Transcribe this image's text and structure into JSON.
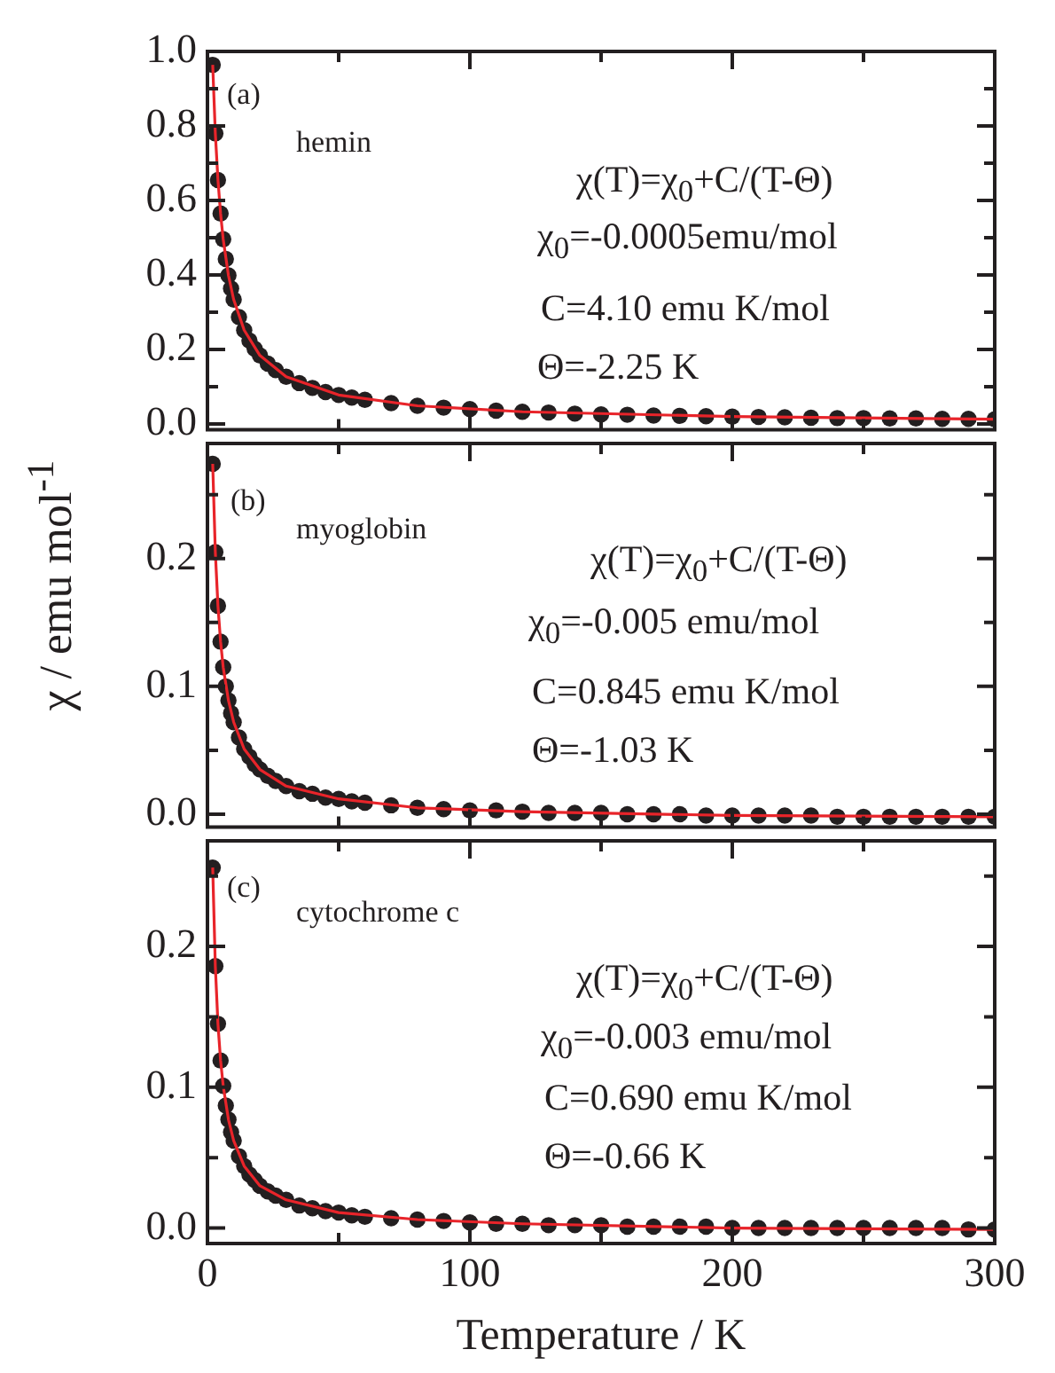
{
  "chart_data": [
    {
      "type": "scatter",
      "x": [
        2,
        3,
        4,
        5,
        6,
        7,
        8,
        9,
        10,
        12,
        14,
        16,
        18,
        20,
        23,
        26,
        30,
        35,
        40,
        45,
        50,
        55,
        60,
        70,
        80,
        90,
        100,
        110,
        120,
        130,
        140,
        150,
        160,
        170,
        180,
        190,
        200,
        210,
        220,
        230,
        240,
        250,
        260,
        270,
        280,
        290,
        300
      ],
      "series": [
        {
          "type": "scatter",
          "color": "#231f20",
          "marker": "circle",
          "values": [
            0.964,
            0.78,
            0.655,
            0.565,
            0.496,
            0.443,
            0.399,
            0.364,
            0.334,
            0.287,
            0.252,
            0.224,
            0.202,
            0.184,
            0.162,
            0.145,
            0.127,
            0.11,
            0.097,
            0.086,
            0.078,
            0.071,
            0.065,
            0.056,
            0.049,
            0.044,
            0.04,
            0.036,
            0.033,
            0.031,
            0.028,
            0.026,
            0.025,
            0.023,
            0.022,
            0.021,
            0.02,
            0.019,
            0.018,
            0.017,
            0.016,
            0.016,
            0.015,
            0.015,
            0.014,
            0.014,
            0.013
          ]
        },
        {
          "type": "line",
          "color": "#e8242a",
          "marker": "none",
          "x": [
            2,
            3,
            4,
            5,
            6,
            8,
            10,
            14,
            20,
            30,
            50,
            80,
            120,
            200,
            300
          ],
          "values": [
            0.964,
            0.78,
            0.655,
            0.565,
            0.496,
            0.399,
            0.334,
            0.252,
            0.184,
            0.127,
            0.078,
            0.049,
            0.033,
            0.02,
            0.013
          ]
        }
      ],
      "xlim": [
        0,
        300
      ],
      "xticks": [
        0,
        {
          "value": 50,
          "label": null
        },
        100,
        {
          "value": 150,
          "label": null
        },
        200,
        {
          "value": 250,
          "label": null
        },
        300
      ],
      "ylim": [
        -0.015,
        1.0
      ],
      "yticks": [
        {
          "value": 0,
          "label": "0.0"
        },
        {
          "value": 0.1,
          "label": null
        },
        0.2,
        {
          "value": 0.3,
          "label": null
        },
        0.4,
        {
          "value": 0.5,
          "label": null
        },
        0.6,
        {
          "value": 0.7,
          "label": null
        },
        0.8,
        {
          "value": 0.9,
          "label": null
        },
        {
          "value": 1.0,
          "label": "1.0"
        }
      ],
      "tick_labels": "y",
      "annotations": [
        "(a)",
        "hemin",
        "χ(T)=χ$_{0}$+C/(T-Θ)",
        "χ$_{0}$=-0.0005emu/mol",
        "C=4.10 emu K/mol",
        "Θ=-2.25 K"
      ]
    },
    {
      "type": "scatter",
      "x": [
        2,
        3,
        4,
        5,
        6,
        7,
        8,
        9,
        10,
        12,
        14,
        16,
        18,
        20,
        23,
        26,
        30,
        35,
        40,
        45,
        50,
        55,
        60,
        70,
        80,
        90,
        100,
        110,
        120,
        130,
        140,
        150,
        160,
        170,
        180,
        190,
        200,
        210,
        220,
        230,
        240,
        250,
        260,
        270,
        280,
        290,
        300
      ],
      "ylabel": "χ / emu mol$^{-1}$",
      "series": [
        {
          "type": "scatter",
          "color": "#231f20",
          "marker": "circle",
          "values": [
            0.274,
            0.205,
            0.163,
            0.135,
            0.115,
            0.1,
            0.089,
            0.079,
            0.072,
            0.06,
            0.051,
            0.045,
            0.039,
            0.035,
            0.03,
            0.026,
            0.022,
            0.018,
            0.016,
            0.013,
            0.012,
            0.01,
            0.009,
            0.007,
            0.005,
            0.004,
            0.003,
            0.003,
            0.002,
            0.001,
            0.001,
            0.001,
            0.0,
            0.0,
            0.0,
            -0.001,
            -0.001,
            -0.001,
            -0.001,
            -0.001,
            -0.002,
            -0.002,
            -0.002,
            -0.002,
            -0.002,
            -0.002,
            -0.002
          ]
        },
        {
          "type": "line",
          "color": "#e8242a",
          "marker": "none",
          "x": [
            2,
            3,
            4,
            5,
            6,
            8,
            10,
            14,
            20,
            30,
            50,
            80,
            120,
            200,
            300
          ],
          "values": [
            0.274,
            0.205,
            0.163,
            0.135,
            0.115,
            0.089,
            0.072,
            0.051,
            0.035,
            0.022,
            0.012,
            0.005,
            0.002,
            -0.001,
            -0.002
          ]
        }
      ],
      "xlim": [
        0,
        300
      ],
      "xticks": [
        0,
        {
          "value": 50,
          "label": null
        },
        100,
        {
          "value": 150,
          "label": null
        },
        200,
        {
          "value": 250,
          "label": null
        },
        300
      ],
      "ylim": [
        -0.01,
        0.29
      ],
      "yticks": [
        {
          "value": 0,
          "label": "0.0"
        },
        {
          "value": 0.05,
          "label": null
        },
        0.1,
        {
          "value": 0.15,
          "label": null
        },
        0.2,
        {
          "value": 0.25,
          "label": null
        }
      ],
      "tick_labels": "y",
      "annotations": [
        "(b)",
        "myoglobin",
        "χ(T)=χ$_{0}$+C/(T-Θ)",
        "χ$_{0}$=-0.005 emu/mol",
        "C=0.845 emu K/mol",
        "Θ=-1.03 K"
      ]
    },
    {
      "type": "scatter",
      "x": [
        2,
        3,
        4,
        5,
        6,
        7,
        8,
        9,
        10,
        12,
        14,
        16,
        18,
        20,
        23,
        26,
        30,
        35,
        40,
        45,
        50,
        55,
        60,
        70,
        80,
        90,
        100,
        110,
        120,
        130,
        140,
        150,
        160,
        170,
        180,
        190,
        200,
        210,
        220,
        230,
        240,
        250,
        260,
        270,
        280,
        290,
        300
      ],
      "xlabel": "Temperature / K",
      "series": [
        {
          "type": "scatter",
          "color": "#231f20",
          "marker": "circle",
          "values": [
            0.256,
            0.186,
            0.145,
            0.119,
            0.101,
            0.087,
            0.077,
            0.068,
            0.062,
            0.051,
            0.044,
            0.038,
            0.034,
            0.03,
            0.026,
            0.023,
            0.02,
            0.016,
            0.014,
            0.012,
            0.011,
            0.009,
            0.008,
            0.007,
            0.006,
            0.005,
            0.004,
            0.003,
            0.003,
            0.002,
            0.002,
            0.002,
            0.001,
            0.001,
            0.001,
            0.001,
            0.0,
            0.0,
            0.0,
            0.0,
            0.0,
            0.0,
            0.0,
            0.0,
            0.0,
            -0.001,
            -0.001
          ]
        },
        {
          "type": "line",
          "color": "#e8242a",
          "marker": "none",
          "x": [
            2,
            3,
            4,
            5,
            6,
            8,
            10,
            14,
            20,
            30,
            50,
            80,
            120,
            200,
            300
          ],
          "values": [
            0.256,
            0.186,
            0.145,
            0.119,
            0.101,
            0.077,
            0.062,
            0.044,
            0.03,
            0.02,
            0.011,
            0.006,
            0.003,
            0.0,
            -0.001
          ]
        }
      ],
      "xlim": [
        0,
        300
      ],
      "xticks": [
        0,
        {
          "value": 50,
          "label": null
        },
        100,
        {
          "value": 150,
          "label": null
        },
        200,
        {
          "value": 250,
          "label": null
        },
        300
      ],
      "ylim": [
        -0.011,
        0.275
      ],
      "yticks": [
        {
          "value": 0,
          "label": "0.0"
        },
        {
          "value": 0.05,
          "label": null
        },
        0.1,
        {
          "value": 0.15,
          "label": null
        },
        0.2,
        {
          "value": 0.25,
          "label": null
        }
      ],
      "annotations": [
        "(c)",
        "cytochrome c",
        "χ(T)=χ$_{0}$+C/(T-Θ)",
        "χ$_{0}$=-0.003 emu/mol",
        "C=0.690 emu K/mol",
        "Θ=-0.66 K"
      ]
    }
  ]
}
